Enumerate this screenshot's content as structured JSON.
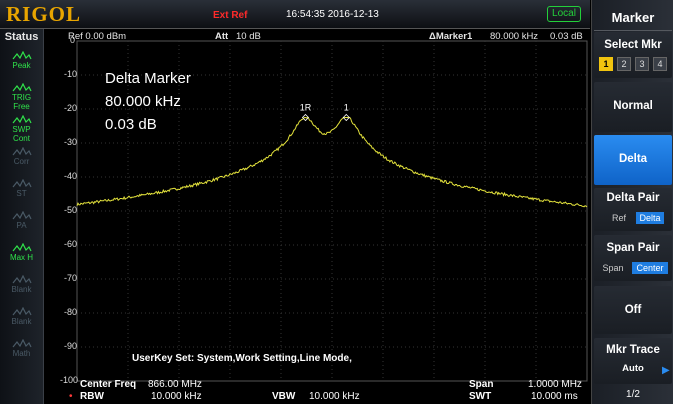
{
  "topbar": {
    "brand": "RIGOL",
    "ext_ref": "Ext Ref",
    "datetime": "16:54:35 2016-12-13",
    "local": "Local"
  },
  "status": {
    "title": "Status",
    "items": [
      {
        "line1": "Peak",
        "icon": "peak-icon",
        "active": true
      },
      {
        "line1": "TRIG",
        "line2": "Free",
        "icon": "trigger-icon",
        "active": true
      },
      {
        "line1": "SWP",
        "line2": "Cont",
        "icon": "sweep-icon",
        "active": true
      },
      {
        "line1": "Corr",
        "icon": "correction-icon",
        "active": false
      },
      {
        "line1": "ST",
        "icon": "sweep-time-icon",
        "active": false
      },
      {
        "line1": "PA",
        "icon": "preamp-icon",
        "active": false
      },
      {
        "line1": "Max H",
        "icon": "max-hold-icon",
        "active": true
      },
      {
        "line1": "Blank",
        "icon": "trace-blank-icon",
        "active": false
      },
      {
        "line1": "Blank",
        "icon": "trace-blank-icon",
        "active": false
      },
      {
        "line1": "Math",
        "icon": "trace-math-icon",
        "active": false
      }
    ]
  },
  "header": {
    "ref": "Ref  0.00 dBm",
    "att": "Att",
    "att_value": "10 dB",
    "marker": "ΔMarker1",
    "marker_freq": "80.000 kHz",
    "marker_db": "0.03 dB"
  },
  "delta_marker": {
    "title": "Delta Marker",
    "freq": "80.000 kHz",
    "amp": "0.03 dB"
  },
  "y_ticks": [
    "0",
    "-10",
    "-20",
    "-30",
    "-40",
    "-50",
    "-60",
    "-70",
    "-80",
    "-90",
    "-100"
  ],
  "markers": {
    "ref_label": "1R",
    "label": "1"
  },
  "userkey": "UserKey Set:   System,Work Setting,Line Mode,",
  "bottom": {
    "center_freq_label": "Center Freq",
    "center_freq_value": "866.00 MHz",
    "rbw_label": "RBW",
    "rbw_value": "10.000 kHz",
    "vbw_label": "VBW",
    "vbw_value": "10.000 kHz",
    "span_label": "Span",
    "span_value": "1.0000 MHz",
    "swt_label": "SWT",
    "swt_value": "10.000 ms"
  },
  "menu": {
    "title": "Marker",
    "select_mkr": "Select Mkr",
    "mkr_numbers": [
      "1",
      "2",
      "3",
      "4"
    ],
    "normal": "Normal",
    "delta": "Delta",
    "delta_pair": "Delta Pair",
    "delta_pair_ref": "Ref",
    "delta_pair_delta": "Delta",
    "span_pair": "Span Pair",
    "span_pair_span": "Span",
    "span_pair_center": "Center",
    "off": "Off",
    "mkr_trace": "Mkr Trace",
    "mkr_trace_value": "Auto",
    "page": "1/2"
  },
  "colors": {
    "trace": "#e3e23c",
    "active_button": "#1f7de0",
    "brand": "#e8a500",
    "status_on": "#2fe24a",
    "ext_ref": "#ff2a2a"
  }
}
